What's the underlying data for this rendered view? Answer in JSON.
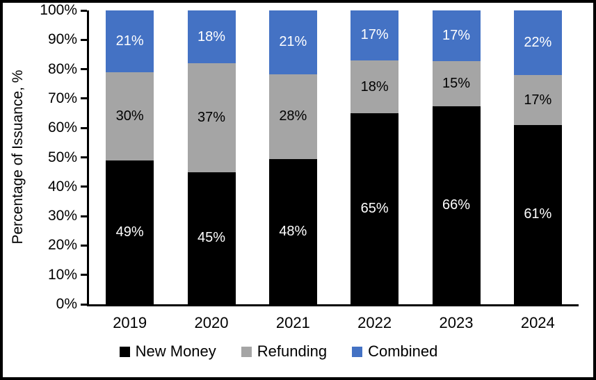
{
  "chart_data": {
    "type": "bar",
    "stacked": true,
    "title": "",
    "xlabel": "",
    "ylabel": "Percentage of Issuance, %",
    "ylim": [
      0,
      100
    ],
    "ytick_step": 10,
    "ytick_labels": [
      "0%",
      "10%",
      "20%",
      "30%",
      "40%",
      "50%",
      "60%",
      "70%",
      "80%",
      "90%",
      "100%"
    ],
    "grid": false,
    "legend_position": "bottom",
    "categories": [
      "2019",
      "2020",
      "2021",
      "2022",
      "2023",
      "2024"
    ],
    "series": [
      {
        "name": "New Money",
        "color": "#000000",
        "label_color": "#FFFFFF",
        "values": [
          49,
          45,
          48,
          65,
          66,
          61
        ],
        "labels": [
          "49%",
          "45%",
          "48%",
          "65%",
          "66%",
          "61%"
        ]
      },
      {
        "name": "Refunding",
        "color": "#A5A5A5",
        "label_color": "#000000",
        "values": [
          30,
          37,
          28,
          18,
          15,
          17
        ],
        "labels": [
          "30%",
          "37%",
          "28%",
          "18%",
          "15%",
          "17%"
        ]
      },
      {
        "name": "Combined",
        "color": "#4472C4",
        "label_color": "#FFFFFF",
        "values": [
          21,
          18,
          21,
          17,
          17,
          22
        ],
        "labels": [
          "21%",
          "18%",
          "21%",
          "17%",
          "17%",
          "22%"
        ]
      }
    ]
  },
  "frame": {
    "border_color": "#000000",
    "background": "#FFFFFF"
  }
}
